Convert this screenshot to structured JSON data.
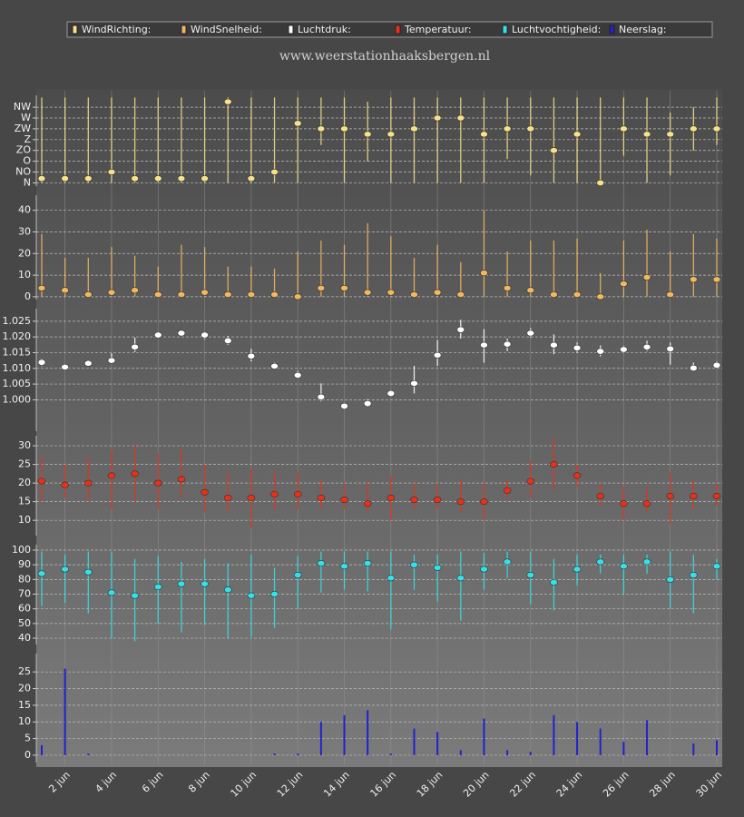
{
  "title": "www.weerstationhaaksbergen.nl",
  "chart_data": [
    {
      "type": "range",
      "ylim": [
        -0.3,
        8.1
      ],
      "yticks": [
        {
          "value": 0,
          "label": "N"
        },
        {
          "value": 1,
          "label": "NO"
        },
        {
          "value": 2,
          "label": "O"
        },
        {
          "value": 3,
          "label": "ZO"
        },
        {
          "value": 4,
          "label": "Z"
        },
        {
          "value": 5,
          "label": "ZW"
        },
        {
          "value": 6,
          "label": "W"
        },
        {
          "value": 7,
          "label": "NW"
        }
      ],
      "series": [
        {
          "name": "WindRichting:",
          "color": "#f6e28a",
          "values": [
            0.4,
            0.4,
            0.4,
            1,
            0.4,
            0.4,
            0.4,
            0.4,
            7.5,
            0.4,
            1,
            5.5,
            5,
            5,
            4.5,
            4.5,
            5,
            6,
            6,
            4.5,
            5,
            5,
            3,
            4.5,
            0,
            5,
            4.5,
            4.5,
            5,
            5
          ],
          "low": [
            0,
            0,
            0,
            0,
            0,
            0,
            0,
            0,
            0,
            0,
            0,
            0,
            3.5,
            0,
            2,
            0,
            0,
            0,
            0,
            0,
            2.2,
            0.7,
            0,
            0,
            0,
            2.5,
            0,
            0.7,
            3,
            3.5
          ],
          "high": [
            7.9,
            7.9,
            7.9,
            7.9,
            7.9,
            7.9,
            7.9,
            7.9,
            7.9,
            7.9,
            7.9,
            7.9,
            7.9,
            7.9,
            7.5,
            7.9,
            7.9,
            7.9,
            7.9,
            7.9,
            7.9,
            7.9,
            7.9,
            7.9,
            7.9,
            7.9,
            7.9,
            6.5,
            7,
            7.9
          ]
        }
      ]
    },
    {
      "type": "range",
      "ylim": [
        -1.3,
        47
      ],
      "yticks": [
        0,
        10,
        20,
        30,
        40
      ],
      "series": [
        {
          "name": "WindSnelheid:",
          "color": "#f2b860",
          "values": [
            4,
            3,
            1,
            2,
            3,
            1,
            1,
            2,
            1,
            1,
            1,
            0,
            4,
            4,
            2,
            2,
            1,
            2,
            1,
            11,
            4,
            3,
            1,
            1,
            0,
            6,
            9,
            1,
            8,
            8
          ],
          "low": [
            0,
            0,
            0,
            0,
            0,
            0,
            0,
            0,
            0,
            0,
            0,
            0,
            0,
            0,
            0,
            0,
            0,
            0,
            0,
            0,
            0,
            0,
            0,
            0,
            0,
            0,
            0,
            0,
            0,
            0
          ],
          "high": [
            29,
            18,
            18,
            23,
            19,
            14,
            24,
            23,
            14,
            14,
            13,
            21,
            26,
            24,
            34,
            28,
            18,
            24,
            16,
            40,
            21,
            26,
            26,
            27,
            11,
            26,
            31,
            21,
            29,
            27
          ]
        }
      ]
    },
    {
      "type": "range",
      "ylim": [
        0.99,
        1.029
      ],
      "yticks": [
        {
          "value": 1.0,
          "label": "1.000"
        },
        {
          "value": 1.005,
          "label": "1.005"
        },
        {
          "value": 1.01,
          "label": "1.010"
        },
        {
          "value": 1.015,
          "label": "1.015"
        },
        {
          "value": 1.02,
          "label": "1.020"
        },
        {
          "value": 1.025,
          "label": "1.025"
        }
      ],
      "series": [
        {
          "name": "Luchtdruk:",
          "color": "#ffffff",
          "values": [
            1.0119,
            1.0104,
            1.0116,
            1.0125,
            1.0168,
            1.0206,
            1.0212,
            1.0206,
            1.0188,
            1.0139,
            1.0107,
            1.0078,
            1.0009,
            0.998,
            0.9988,
            1.002,
            1.0052,
            1.0142,
            1.0223,
            1.0174,
            1.0177,
            1.0212,
            1.0174,
            1.0165,
            1.0154,
            1.016,
            1.0168,
            1.0162,
            1.0101,
            1.011
          ],
          "low": [
            1.0107,
            1.0098,
            1.0111,
            1.0118,
            1.0152,
            1.0198,
            1.0205,
            1.0192,
            1.0175,
            1.0122,
            1.0098,
            1.0068,
            0.9995,
            0.997,
            0.9982,
            1.0012,
            1.002,
            1.0108,
            1.0195,
            1.0118,
            1.0155,
            1.0198,
            1.0145,
            1.015,
            1.0138,
            1.0148,
            1.0155,
            1.0112,
            1.0095,
            1.0102
          ],
          "high": [
            1.013,
            1.0112,
            1.0122,
            1.0148,
            1.0198,
            1.0212,
            1.022,
            1.0212,
            1.0203,
            1.0162,
            1.0118,
            1.0092,
            1.0052,
            0.999,
            1.0002,
            1.0028,
            1.0108,
            1.019,
            1.0255,
            1.0225,
            1.0195,
            1.0228,
            1.0208,
            1.0182,
            1.0173,
            1.0172,
            1.0188,
            1.0182,
            1.0118,
            1.0122
          ]
        }
      ]
    },
    {
      "type": "range",
      "ylim": [
        5.9,
        32.7
      ],
      "yticks": [
        10,
        15,
        20,
        25,
        30
      ],
      "series": [
        {
          "name": "Temperatuur:",
          "color": "#e8311a",
          "values": [
            20.5,
            19.5,
            20,
            22,
            22.5,
            20,
            21,
            17.5,
            16,
            16,
            17,
            17,
            16,
            15.5,
            14.5,
            16,
            15.5,
            15.5,
            15,
            15,
            18,
            20.5,
            25,
            22,
            16.5,
            14.5,
            14.5,
            16.5,
            16.5,
            16.5
          ],
          "low": [
            15,
            16,
            15,
            13,
            15,
            13,
            16,
            12,
            12,
            8,
            13,
            13,
            13,
            13,
            12,
            10,
            13,
            13,
            12,
            10,
            16,
            16,
            18,
            19,
            14,
            10,
            12,
            9,
            13,
            14
          ],
          "high": [
            27,
            25,
            27,
            29,
            30,
            28,
            29,
            25,
            23,
            24,
            23,
            23,
            21,
            20,
            20,
            22,
            20,
            20,
            21,
            20,
            21,
            26,
            32,
            25,
            20,
            19,
            19,
            23,
            21,
            20
          ]
        }
      ]
    },
    {
      "type": "range",
      "ylim": [
        35.7,
        103.7
      ],
      "yticks": [
        40,
        50,
        60,
        70,
        80,
        90,
        100
      ],
      "series": [
        {
          "name": "Luchtvochtigheid:",
          "color": "#35e0e8",
          "values": [
            84,
            87,
            85,
            71,
            69,
            75,
            77,
            77,
            73,
            69,
            70,
            83,
            91,
            89,
            91,
            81,
            90,
            88,
            81,
            87,
            92,
            83,
            78,
            87,
            92,
            89,
            92,
            80,
            83,
            89
          ],
          "low": [
            62,
            64,
            57,
            40,
            38,
            50,
            44,
            49,
            40,
            41,
            47,
            60,
            71,
            73,
            72,
            46,
            73,
            65,
            52,
            73,
            81,
            63,
            59,
            76,
            84,
            70,
            84,
            60,
            57,
            80
          ],
          "high": [
            99,
            97,
            99,
            99,
            94,
            96,
            92,
            94,
            91,
            97,
            88,
            96,
            99,
            99,
            99,
            99,
            97,
            97,
            99,
            98,
            99,
            99,
            94,
            97,
            97,
            97,
            97,
            99,
            97,
            94
          ]
        }
      ]
    },
    {
      "type": "bar",
      "ylim": [
        -2.2,
        30.5
      ],
      "yticks": [
        0,
        5,
        10,
        15,
        20,
        25
      ],
      "categories": [
        null,
        "2 jun",
        null,
        "4 jun",
        null,
        "6 jun",
        null,
        "8 jun",
        null,
        "10 jun",
        null,
        "12 jun",
        null,
        "14 jun",
        null,
        "16 jun",
        null,
        "18 jun",
        null,
        "20 jun",
        null,
        "22 jun",
        null,
        "24 jun",
        null,
        "26 jun",
        null,
        "28 jun",
        null,
        "30 jun"
      ],
      "series": [
        {
          "name": "Neerslag:",
          "color": "#2222cc",
          "values": [
            3,
            26,
            0.5,
            0,
            0,
            0,
            0,
            0,
            0,
            0,
            0.5,
            0.5,
            10,
            12,
            13.5,
            0.5,
            8,
            7,
            1.5,
            11,
            1.5,
            1,
            12,
            10,
            8,
            4,
            10.5,
            0,
            3.5,
            4.5
          ]
        }
      ]
    }
  ]
}
